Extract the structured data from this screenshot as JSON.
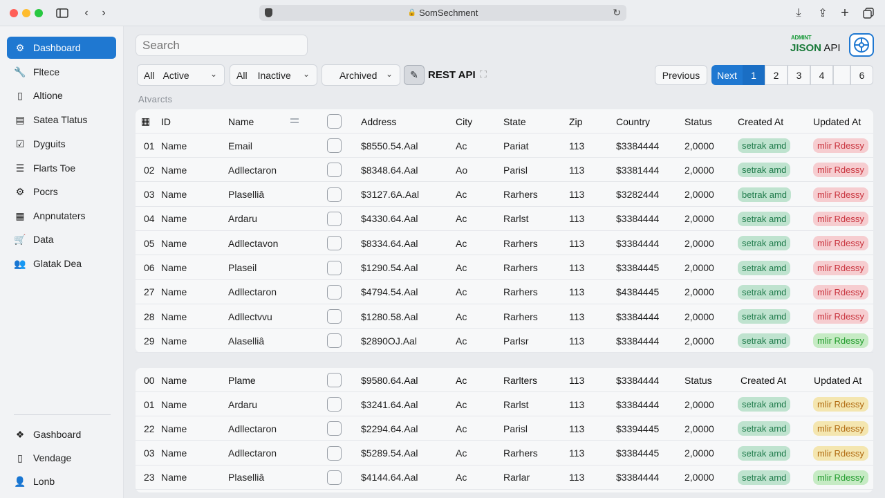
{
  "window": {
    "url": "SomSechment"
  },
  "sidebar": {
    "items": [
      {
        "label": "Dashboard",
        "icon": "settings-network-icon",
        "active": true
      },
      {
        "label": "Fltece",
        "icon": "wrench-icon"
      },
      {
        "label": "Altione",
        "icon": "document-icon"
      },
      {
        "label": "Satea Tlatus",
        "icon": "chart-icon"
      },
      {
        "label": "Dyguits",
        "icon": "clipboard-check-icon"
      },
      {
        "label": "Flarts Toe",
        "icon": "list-icon"
      },
      {
        "label": "Pocrs",
        "icon": "gear-icon"
      },
      {
        "label": "Anpnutaters",
        "icon": "grid-icon"
      },
      {
        "label": "Data",
        "icon": "cart-icon"
      },
      {
        "label": "Glatak Dea",
        "icon": "users-icon"
      }
    ],
    "bottom_items": [
      {
        "label": "Gashboard",
        "icon": "apps-icon"
      },
      {
        "label": "Vendage",
        "icon": "document-icon"
      },
      {
        "label": "Lonb",
        "icon": "user-icon"
      }
    ]
  },
  "search": {
    "placeholder": "Search"
  },
  "brand": {
    "small": "ADMINT",
    "big_a": "JISON",
    "big_b": " API"
  },
  "filters": [
    {
      "prefix": "All",
      "label": "Active"
    },
    {
      "prefix": "All",
      "label": "Inactive"
    },
    {
      "prefix": "",
      "label": "Archived"
    }
  ],
  "rest_label": "REST API",
  "pagination": {
    "prev": "Previous",
    "next": "Next",
    "pages": [
      "1",
      "2",
      "3",
      "4",
      "6"
    ]
  },
  "section_label": "Atvarcts",
  "table1": {
    "headers": {
      "id": "ID",
      "name": "Name",
      "address": "Address",
      "city": "City",
      "state": "State",
      "zip": "Zip",
      "country": "Country",
      "status": "Status",
      "created": "Created At",
      "updated": "Updated At"
    },
    "rows": [
      {
        "id": "01",
        "label": "Name",
        "name": "Email",
        "address": "$8550.54.Aal",
        "city": "Ac",
        "state": "Pariat",
        "zip": "113",
        "country": "$3384444",
        "status": "2,0000",
        "created": "setrak amd",
        "updated": "mlir Rdessy",
        "updated_tone": "r"
      },
      {
        "id": "02",
        "label": "Name",
        "name": "Adllectaron",
        "address": "$8348.64.Aal",
        "city": "Ao",
        "state": "Parisl",
        "zip": "113",
        "country": "$3381444",
        "status": "2,0000",
        "created": "setrak amd",
        "updated": "mlir Rdessy",
        "updated_tone": "r"
      },
      {
        "id": "03",
        "label": "Name",
        "name": "Plaselliâ",
        "address": "$3127.6A.Aal",
        "city": "Ac",
        "state": "Rarhers",
        "zip": "113",
        "country": "$3282444",
        "status": "2,0000",
        "created": "betrak amd",
        "updated": "mlir Rdessy",
        "updated_tone": "r"
      },
      {
        "id": "04",
        "label": "Name",
        "name": "Ardaru",
        "address": "$4330.64.Aal",
        "city": "Ac",
        "state": "Rarlst",
        "zip": "113",
        "country": "$3384444",
        "status": "2,0000",
        "created": "setrak amd",
        "updated": "mlir Rdessy",
        "updated_tone": "r"
      },
      {
        "id": "05",
        "label": "Name",
        "name": "Adllectavon",
        "address": "$8334.64.Aal",
        "city": "Ac",
        "state": "Rarhers",
        "zip": "113",
        "country": "$3384444",
        "status": "2,0000",
        "created": "setrak amd",
        "updated": "mlir Rdessy",
        "updated_tone": "r"
      },
      {
        "id": "06",
        "label": "Name",
        "name": "Plaseil",
        "address": "$1290.54.Aal",
        "city": "Ac",
        "state": "Rarhers",
        "zip": "113",
        "country": "$3384445",
        "status": "2,0000",
        "created": "setrak amd",
        "updated": "mlir Rdessy",
        "updated_tone": "r"
      },
      {
        "id": "27",
        "label": "Name",
        "name": "Adllectaron",
        "address": "$4794.54.Aal",
        "city": "Ac",
        "state": "Rarhers",
        "zip": "113",
        "country": "$4384445",
        "status": "2,0000",
        "created": "setrak amd",
        "updated": "mlir Rdessy",
        "updated_tone": "r"
      },
      {
        "id": "28",
        "label": "Name",
        "name": "Adllectvvu",
        "address": "$1280.58.Aal",
        "city": "Ac",
        "state": "Rarhers",
        "zip": "113",
        "country": "$3384444",
        "status": "2,0000",
        "created": "setrak amd",
        "updated": "mlir Rdessy",
        "updated_tone": "r"
      },
      {
        "id": "29",
        "label": "Name",
        "name": "Alaselliâ",
        "address": "$2890OJ.Aal",
        "city": "Ac",
        "state": "Parlsr",
        "zip": "113",
        "country": "$3384444",
        "status": "2,0000",
        "created": "setrak amd",
        "updated": "mlir Rdessy",
        "updated_tone": "gg"
      }
    ]
  },
  "table2": {
    "headers": {
      "id": "00",
      "label": "Name",
      "name": "Plame",
      "address": "$9580.64.Aal",
      "city": "Ac",
      "state": "Rarlters",
      "zip": "113",
      "country": "$3384444",
      "status": "Status",
      "created": "Created At",
      "updated": "Updated At"
    },
    "rows": [
      {
        "id": "01",
        "label": "Name",
        "name": "Ardaru",
        "address": "$3241.64.Aal",
        "city": "Ac",
        "state": "Rarlst",
        "zip": "113",
        "country": "$3384444",
        "status": "2,0000",
        "created": "setrak amd",
        "updated": "mlir Rdessy",
        "updated_tone": "y"
      },
      {
        "id": "22",
        "label": "Name",
        "name": "Adllectaron",
        "address": "$2294.64.Aal",
        "city": "Ac",
        "state": "Parisl",
        "zip": "113",
        "country": "$3394445",
        "status": "2,0000",
        "created": "setrak amd",
        "updated": "mlir Rdessy",
        "updated_tone": "y"
      },
      {
        "id": "03",
        "label": "Name",
        "name": "Adllectaron",
        "address": "$5289.54.Aal",
        "city": "Ac",
        "state": "Rarhers",
        "zip": "113",
        "country": "$3384445",
        "status": "2,0000",
        "created": "setrak amd",
        "updated": "mlir Rdessy",
        "updated_tone": "y"
      },
      {
        "id": "23",
        "label": "Name",
        "name": "Plaselliâ",
        "address": "$4144.64.Aal",
        "city": "Ac",
        "state": "Rarlar",
        "zip": "113",
        "country": "$3384444",
        "status": "2,0000",
        "created": "setrak amd",
        "updated": "mlir Rdessy",
        "updated_tone": "gg"
      }
    ]
  },
  "colors": {
    "accent": "#1f78d1",
    "badge_green": "#bfe3cf",
    "badge_red": "#f6cdd0",
    "badge_yellow": "#f4e6b0"
  }
}
